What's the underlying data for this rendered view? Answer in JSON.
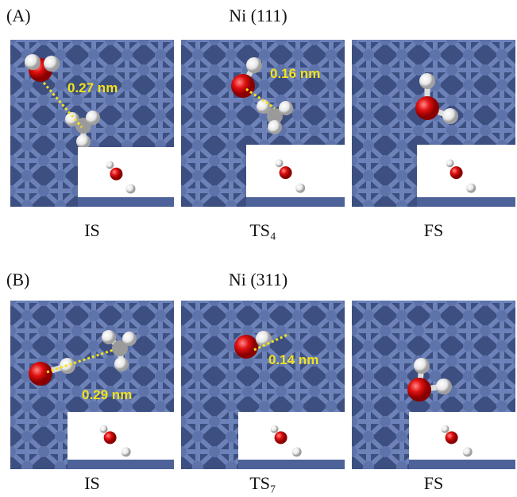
{
  "panels": [
    {
      "letter": "(A)",
      "title": "Ni (111)",
      "images": [
        {
          "distance": "0.27 nm",
          "label": "IS"
        },
        {
          "distance": "0.16 nm",
          "label": "TS₄"
        },
        {
          "label": "FS"
        }
      ]
    },
    {
      "letter": "(B)",
      "title": "Ni (311)",
      "images": [
        {
          "distance": "0.29 nm",
          "label": "IS"
        },
        {
          "distance": "0.14 nm",
          "label": "TS₇"
        },
        {
          "label": "FS"
        }
      ]
    }
  ]
}
